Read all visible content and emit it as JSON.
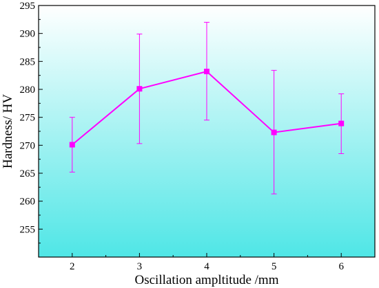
{
  "chart_data": {
    "type": "line",
    "xlabel": "Oscillation ampltitude /mm",
    "ylabel": "Hardness/ HV",
    "xlim": [
      1.5,
      6.5
    ],
    "ylim": [
      250,
      295
    ],
    "x_ticks": [
      2,
      3,
      4,
      5,
      6
    ],
    "y_ticks": [
      255,
      260,
      265,
      270,
      275,
      280,
      285,
      290,
      295
    ],
    "grid": false,
    "legend": "none",
    "series": [
      {
        "x": [
          2,
          3,
          4,
          5,
          6
        ],
        "values": [
          270.1,
          280.1,
          283.2,
          272.3,
          273.9
        ],
        "error_low": [
          265.2,
          270.3,
          274.5,
          261.3,
          268.5
        ],
        "error_high": [
          275.0,
          289.9,
          292.0,
          283.4,
          279.2
        ],
        "color": "#ff00ff",
        "marker": "square"
      }
    ],
    "background_gradient": [
      "#ffffff",
      "#4fe6e6"
    ]
  }
}
